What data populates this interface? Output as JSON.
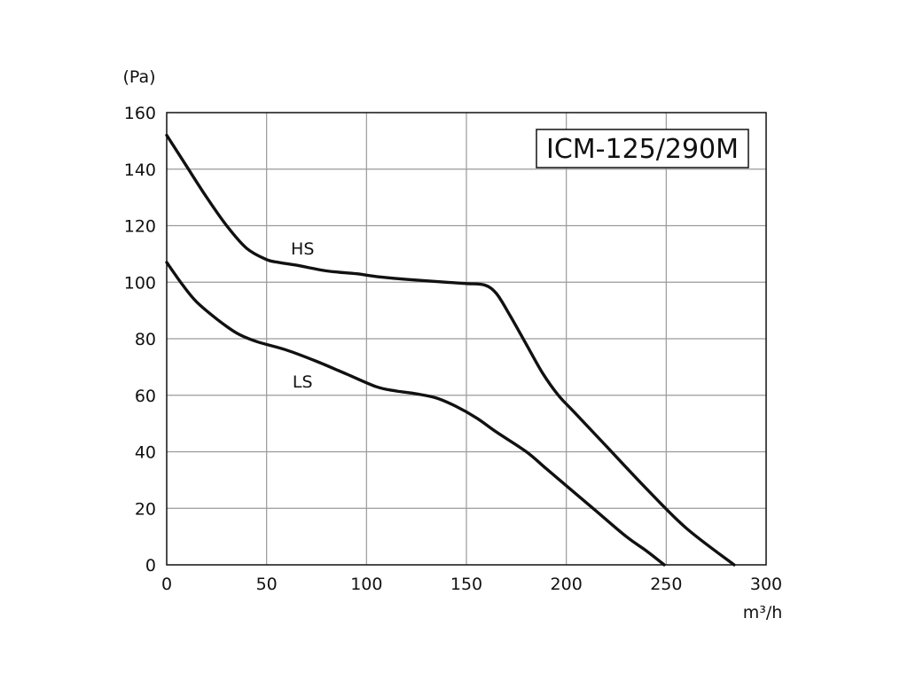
{
  "chart_data": {
    "type": "line",
    "title": "ICM-125/290M",
    "ylabel": "(Pa)",
    "xlabel": "m³/h",
    "xlim": [
      0,
      300
    ],
    "ylim": [
      0,
      160
    ],
    "x_ticks": [
      0,
      50,
      100,
      150,
      200,
      250,
      300
    ],
    "y_ticks": [
      0,
      20,
      40,
      60,
      80,
      100,
      120,
      140,
      160
    ],
    "grid": true,
    "series": [
      {
        "name": "HS",
        "label_at": [
          68,
          112
        ],
        "points": [
          [
            0,
            152
          ],
          [
            10,
            141
          ],
          [
            20,
            130
          ],
          [
            30,
            120
          ],
          [
            40,
            112
          ],
          [
            50,
            108
          ],
          [
            56,
            107
          ],
          [
            65,
            106
          ],
          [
            80,
            104
          ],
          [
            95,
            103
          ],
          [
            105,
            102
          ],
          [
            120,
            101
          ],
          [
            140,
            100
          ],
          [
            150,
            99.5
          ],
          [
            159,
            99
          ],
          [
            165,
            96
          ],
          [
            172,
            88
          ],
          [
            180,
            78
          ],
          [
            188,
            68
          ],
          [
            196,
            60
          ],
          [
            204,
            54
          ],
          [
            220,
            42
          ],
          [
            240,
            27
          ],
          [
            260,
            13
          ],
          [
            284,
            0
          ]
        ]
      },
      {
        "name": "LS",
        "label_at": [
          68,
          65
        ],
        "points": [
          [
            0,
            107
          ],
          [
            8,
            99
          ],
          [
            15,
            93
          ],
          [
            25,
            87
          ],
          [
            35,
            82
          ],
          [
            45,
            79
          ],
          [
            60,
            76
          ],
          [
            75,
            72
          ],
          [
            90,
            67.5
          ],
          [
            105,
            63
          ],
          [
            115,
            61.5
          ],
          [
            125,
            60.5
          ],
          [
            135,
            59
          ],
          [
            145,
            56
          ],
          [
            155,
            52
          ],
          [
            165,
            47
          ],
          [
            180,
            40
          ],
          [
            190,
            34
          ],
          [
            200,
            28
          ],
          [
            215,
            19
          ],
          [
            230,
            10
          ],
          [
            240,
            5
          ],
          [
            249,
            0
          ]
        ]
      }
    ]
  }
}
